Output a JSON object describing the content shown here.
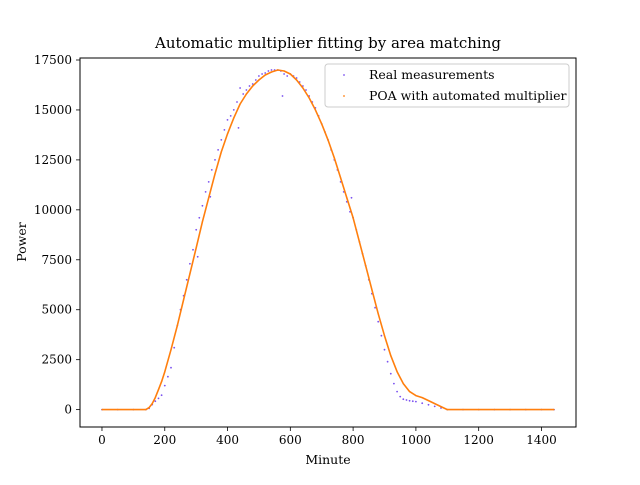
{
  "chart_data": {
    "type": "scatter",
    "title": "Automatic multiplier fitting by area matching",
    "xlabel": "Minute",
    "ylabel": "Power",
    "xlim": [
      -70,
      1510
    ],
    "ylim": [
      -870,
      17600
    ],
    "x_ticks": [
      0,
      200,
      400,
      600,
      800,
      1000,
      1200,
      1400
    ],
    "y_ticks": [
      0,
      2500,
      5000,
      7500,
      10000,
      12500,
      15000,
      17500
    ],
    "x_tick_labels": [
      "0",
      "200",
      "400",
      "600",
      "800",
      "1000",
      "1200",
      "1400"
    ],
    "y_tick_labels": [
      "0",
      "2500",
      "5000",
      "7500",
      "10000",
      "12500",
      "15000",
      "17500"
    ],
    "grid": false,
    "legend_position": "top-right",
    "series": [
      {
        "name": "Real measurements",
        "color": "#7b52f0",
        "marker": "dot",
        "points": [
          [
            0,
            0
          ],
          [
            50,
            0
          ],
          [
            100,
            0
          ],
          [
            140,
            0
          ],
          [
            150,
            60
          ],
          [
            160,
            250
          ],
          [
            170,
            420
          ],
          [
            180,
            560
          ],
          [
            190,
            720
          ],
          [
            200,
            1200
          ],
          [
            210,
            1650
          ],
          [
            220,
            2100
          ],
          [
            230,
            3100
          ],
          [
            240,
            4200
          ],
          [
            250,
            5000
          ],
          [
            260,
            5700
          ],
          [
            270,
            6500
          ],
          [
            280,
            7300
          ],
          [
            290,
            8000
          ],
          [
            300,
            9000
          ],
          [
            305,
            7650
          ],
          [
            310,
            9600
          ],
          [
            320,
            10200
          ],
          [
            330,
            10900
          ],
          [
            340,
            11400
          ],
          [
            345,
            10650
          ],
          [
            350,
            12000
          ],
          [
            360,
            12500
          ],
          [
            370,
            13000
          ],
          [
            380,
            13500
          ],
          [
            390,
            14000
          ],
          [
            400,
            14500
          ],
          [
            410,
            14700
          ],
          [
            420,
            15000
          ],
          [
            430,
            15400
          ],
          [
            435,
            14100
          ],
          [
            440,
            16100
          ],
          [
            450,
            15800
          ],
          [
            460,
            16000
          ],
          [
            470,
            16200
          ],
          [
            480,
            16300
          ],
          [
            490,
            16500
          ],
          [
            500,
            16700
          ],
          [
            510,
            16800
          ],
          [
            520,
            16850
          ],
          [
            530,
            16950
          ],
          [
            540,
            17000
          ],
          [
            550,
            17000
          ],
          [
            560,
            17000
          ],
          [
            570,
            16950
          ],
          [
            575,
            15700
          ],
          [
            580,
            16800
          ],
          [
            590,
            16700
          ],
          [
            600,
            16800
          ],
          [
            610,
            16700
          ],
          [
            620,
            16600
          ],
          [
            630,
            16400
          ],
          [
            640,
            16200
          ],
          [
            650,
            16000
          ],
          [
            660,
            15700
          ],
          [
            670,
            15400
          ],
          [
            680,
            15100
          ],
          [
            690,
            14700
          ],
          [
            700,
            14300
          ],
          [
            710,
            13900
          ],
          [
            720,
            13500
          ],
          [
            730,
            13000
          ],
          [
            740,
            12500
          ],
          [
            750,
            12000
          ],
          [
            760,
            11400
          ],
          [
            770,
            10900
          ],
          [
            780,
            10400
          ],
          [
            790,
            9900
          ],
          [
            795,
            10600
          ],
          [
            800,
            9600
          ],
          [
            810,
            9000
          ],
          [
            820,
            8400
          ],
          [
            830,
            7800
          ],
          [
            840,
            7200
          ],
          [
            850,
            6500
          ],
          [
            860,
            5800
          ],
          [
            870,
            5100
          ],
          [
            880,
            4400
          ],
          [
            890,
            3700
          ],
          [
            900,
            3000
          ],
          [
            910,
            2400
          ],
          [
            920,
            1800
          ],
          [
            930,
            1300
          ],
          [
            940,
            900
          ],
          [
            950,
            650
          ],
          [
            960,
            520
          ],
          [
            970,
            480
          ],
          [
            980,
            440
          ],
          [
            990,
            420
          ],
          [
            1000,
            400
          ],
          [
            1020,
            320
          ],
          [
            1040,
            240
          ],
          [
            1060,
            160
          ],
          [
            1080,
            80
          ],
          [
            1100,
            0
          ],
          [
            1150,
            0
          ],
          [
            1200,
            0
          ],
          [
            1250,
            0
          ],
          [
            1300,
            0
          ],
          [
            1350,
            0
          ],
          [
            1400,
            0
          ],
          [
            1440,
            0
          ]
        ]
      },
      {
        "name": "POA with automated multiplier",
        "color": "#ff7f0e",
        "marker": "line",
        "points": [
          [
            0,
            0
          ],
          [
            100,
            0
          ],
          [
            140,
            0
          ],
          [
            150,
            100
          ],
          [
            160,
            300
          ],
          [
            170,
            600
          ],
          [
            180,
            1000
          ],
          [
            190,
            1400
          ],
          [
            200,
            1900
          ],
          [
            220,
            3000
          ],
          [
            240,
            4200
          ],
          [
            260,
            5500
          ],
          [
            280,
            6800
          ],
          [
            300,
            8100
          ],
          [
            320,
            9400
          ],
          [
            340,
            10600
          ],
          [
            360,
            11800
          ],
          [
            380,
            12900
          ],
          [
            400,
            13800
          ],
          [
            420,
            14600
          ],
          [
            440,
            15300
          ],
          [
            460,
            15800
          ],
          [
            480,
            16200
          ],
          [
            500,
            16500
          ],
          [
            520,
            16750
          ],
          [
            540,
            16900
          ],
          [
            560,
            17000
          ],
          [
            580,
            16950
          ],
          [
            600,
            16800
          ],
          [
            620,
            16500
          ],
          [
            640,
            16100
          ],
          [
            660,
            15600
          ],
          [
            680,
            15000
          ],
          [
            700,
            14300
          ],
          [
            720,
            13500
          ],
          [
            740,
            12600
          ],
          [
            760,
            11600
          ],
          [
            780,
            10600
          ],
          [
            800,
            9600
          ],
          [
            820,
            8400
          ],
          [
            840,
            7200
          ],
          [
            860,
            6000
          ],
          [
            880,
            4800
          ],
          [
            900,
            3700
          ],
          [
            920,
            2700
          ],
          [
            940,
            1900
          ],
          [
            960,
            1300
          ],
          [
            980,
            900
          ],
          [
            1000,
            700
          ],
          [
            1020,
            600
          ],
          [
            1040,
            450
          ],
          [
            1060,
            300
          ],
          [
            1080,
            150
          ],
          [
            1100,
            0
          ],
          [
            1200,
            0
          ],
          [
            1300,
            0
          ],
          [
            1440,
            0
          ]
        ]
      }
    ]
  }
}
